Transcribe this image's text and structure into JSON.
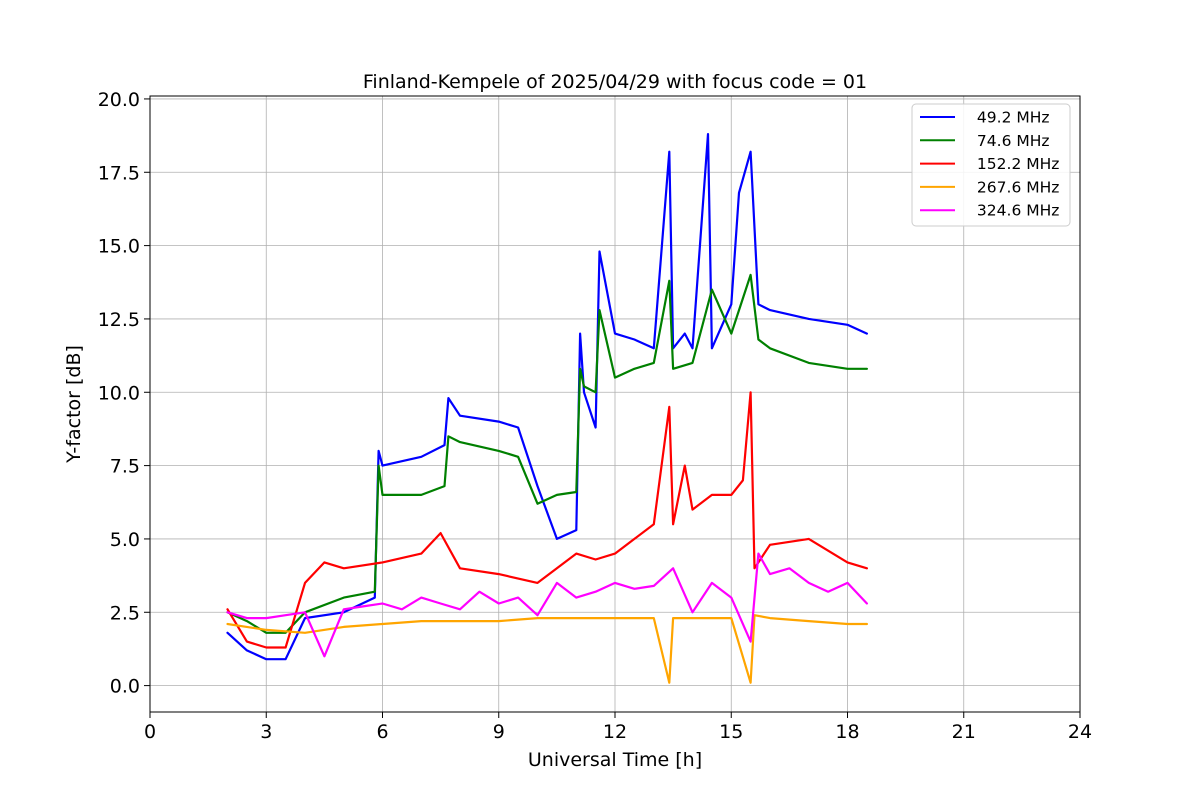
{
  "chart_data": {
    "type": "line",
    "title": "Finland-Kempele of 2025/04/29 with focus code = 01",
    "xlabel": "Universal Time [h]",
    "ylabel": "Y-factor [dB]",
    "xlim": [
      0,
      24
    ],
    "ylim": [
      -0.9,
      20.1
    ],
    "xticks": [
      0,
      3,
      6,
      9,
      12,
      15,
      18,
      21,
      24
    ],
    "xtick_labels": [
      "0",
      "3",
      "6",
      "9",
      "12",
      "15",
      "18",
      "21",
      "24"
    ],
    "yticks": [
      0.0,
      2.5,
      5.0,
      7.5,
      10.0,
      12.5,
      15.0,
      17.5,
      20.0
    ],
    "ytick_labels": [
      "0.0",
      "2.5",
      "5.0",
      "7.5",
      "10.0",
      "12.5",
      "15.0",
      "17.5",
      "20.0"
    ],
    "grid": true,
    "legend_position": "top-right",
    "series": [
      {
        "name": " 49.2 MHz",
        "color": "#0000ff",
        "x": [
          2.0,
          2.5,
          3.0,
          3.5,
          4.0,
          5.0,
          5.8,
          5.9,
          6.0,
          7.0,
          7.6,
          7.7,
          8.0,
          9.0,
          9.5,
          10.0,
          10.5,
          11.0,
          11.1,
          11.2,
          11.5,
          11.6,
          12.0,
          12.5,
          13.0,
          13.4,
          13.5,
          13.8,
          14.0,
          14.4,
          14.5,
          15.0,
          15.2,
          15.5,
          15.7,
          16.0,
          17.0,
          18.0,
          18.5
        ],
        "y": [
          1.8,
          1.2,
          0.9,
          0.9,
          2.3,
          2.5,
          3.0,
          8.0,
          7.5,
          7.8,
          8.2,
          9.8,
          9.2,
          9.0,
          8.8,
          6.8,
          5.0,
          5.3,
          12.0,
          10.0,
          8.8,
          14.8,
          12.0,
          11.8,
          11.5,
          18.2,
          11.5,
          12.0,
          11.5,
          18.8,
          11.5,
          13.0,
          16.8,
          18.2,
          13.0,
          12.8,
          12.5,
          12.3,
          12.0
        ]
      },
      {
        "name": " 74.6 MHz",
        "color": "#008000",
        "x": [
          2.0,
          2.5,
          3.0,
          3.5,
          4.0,
          5.0,
          5.8,
          5.9,
          6.0,
          7.0,
          7.6,
          7.7,
          8.0,
          9.0,
          9.5,
          10.0,
          10.5,
          11.0,
          11.1,
          11.2,
          11.5,
          11.6,
          12.0,
          12.5,
          13.0,
          13.4,
          13.5,
          14.0,
          14.5,
          15.0,
          15.5,
          15.7,
          16.0,
          17.0,
          18.0,
          18.5
        ],
        "y": [
          2.5,
          2.2,
          1.8,
          1.8,
          2.5,
          3.0,
          3.2,
          7.5,
          6.5,
          6.5,
          6.8,
          8.5,
          8.3,
          8.0,
          7.8,
          6.2,
          6.5,
          6.6,
          10.8,
          10.2,
          10.0,
          12.8,
          10.5,
          10.8,
          11.0,
          13.8,
          10.8,
          11.0,
          13.5,
          12.0,
          14.0,
          11.8,
          11.5,
          11.0,
          10.8,
          10.8
        ]
      },
      {
        "name": " 152.2 MHz",
        "color": "#ff0000",
        "x": [
          2.0,
          2.5,
          3.0,
          3.5,
          4.0,
          4.5,
          5.0,
          6.0,
          7.0,
          7.5,
          8.0,
          9.0,
          10.0,
          10.5,
          11.0,
          11.5,
          12.0,
          12.5,
          13.0,
          13.4,
          13.5,
          13.8,
          14.0,
          14.5,
          15.0,
          15.3,
          15.5,
          15.6,
          16.0,
          17.0,
          18.0,
          18.5
        ],
        "y": [
          2.6,
          1.5,
          1.3,
          1.3,
          3.5,
          4.2,
          4.0,
          4.2,
          4.5,
          5.2,
          4.0,
          3.8,
          3.5,
          4.0,
          4.5,
          4.3,
          4.5,
          5.0,
          5.5,
          9.5,
          5.5,
          7.5,
          6.0,
          6.5,
          6.5,
          7.0,
          10.0,
          4.0,
          4.8,
          5.0,
          4.2,
          4.0
        ]
      },
      {
        "name": " 267.6 MHz",
        "color": "#ffa500",
        "x": [
          2.0,
          3.0,
          4.0,
          5.0,
          6.0,
          7.0,
          8.0,
          9.0,
          10.0,
          11.0,
          12.0,
          13.0,
          13.4,
          13.5,
          14.0,
          15.0,
          15.5,
          15.6,
          16.0,
          17.0,
          18.0,
          18.5
        ],
        "y": [
          2.1,
          1.9,
          1.8,
          2.0,
          2.1,
          2.2,
          2.2,
          2.2,
          2.3,
          2.3,
          2.3,
          2.3,
          0.1,
          2.3,
          2.3,
          2.3,
          0.1,
          2.4,
          2.3,
          2.2,
          2.1,
          2.1
        ]
      },
      {
        "name": " 324.6 MHz",
        "color": "#ff00ff",
        "x": [
          2.0,
          2.5,
          3.0,
          3.5,
          4.0,
          4.5,
          5.0,
          5.5,
          6.0,
          6.5,
          7.0,
          7.5,
          8.0,
          8.5,
          9.0,
          9.5,
          10.0,
          10.5,
          11.0,
          11.5,
          12.0,
          12.5,
          13.0,
          13.5,
          14.0,
          14.5,
          15.0,
          15.5,
          15.7,
          16.0,
          16.5,
          17.0,
          17.5,
          18.0,
          18.5
        ],
        "y": [
          2.5,
          2.3,
          2.3,
          2.4,
          2.5,
          1.0,
          2.6,
          2.7,
          2.8,
          2.6,
          3.0,
          2.8,
          2.6,
          3.2,
          2.8,
          3.0,
          2.4,
          3.5,
          3.0,
          3.2,
          3.5,
          3.3,
          3.4,
          4.0,
          2.5,
          3.5,
          3.0,
          1.5,
          4.5,
          3.8,
          4.0,
          3.5,
          3.2,
          3.5,
          2.8
        ]
      }
    ]
  }
}
